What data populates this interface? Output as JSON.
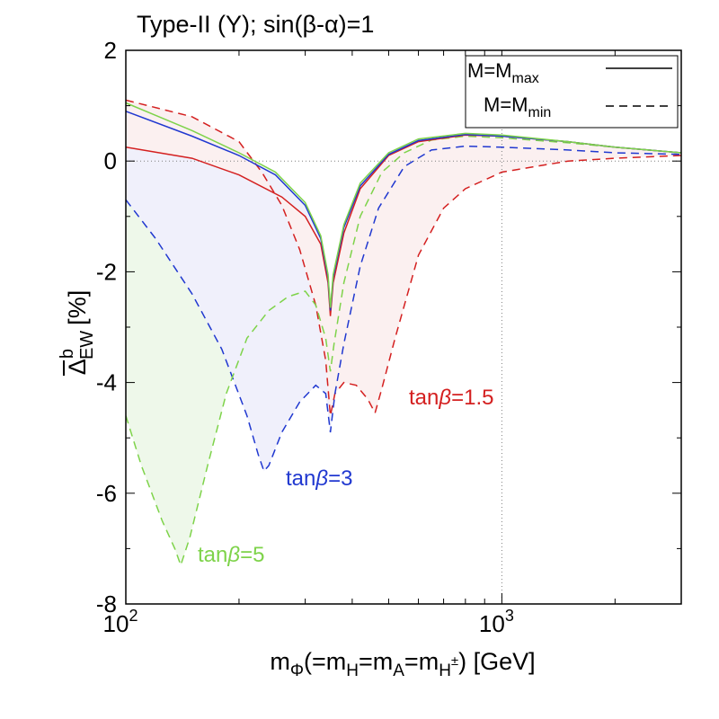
{
  "chart_data": {
    "type": "line",
    "title": "Type-II (Y); sin(β-α)=1",
    "xlabel": {
      "base": "m",
      "sub": "Φ",
      "mid1": "(=m",
      "subH": "H",
      "mid2": "=m",
      "subA": "A",
      "mid3": "=m",
      "subHpm": "H",
      "supHpm": "±",
      "tail": ") [GeV]"
    },
    "ylabel": {
      "symbol": "Δ",
      "sup": "b",
      "sub": "EW",
      "unit": "[%]"
    },
    "x_scale": "log",
    "xlim": [
      100,
      3000
    ],
    "ylim": [
      -8,
      2
    ],
    "x_ticks": [
      {
        "value": 100,
        "base": "10",
        "exp": "2"
      },
      {
        "value": 1000,
        "base": "10",
        "exp": "3"
      }
    ],
    "y_ticks": [
      {
        "value": 2,
        "label": "2"
      },
      {
        "value": 0,
        "label": "0"
      },
      {
        "value": -2,
        "label": "-2"
      },
      {
        "value": -4,
        "label": "-4"
      },
      {
        "value": -6,
        "label": "-6"
      },
      {
        "value": -8,
        "label": "-8"
      }
    ],
    "grid": "dotted at y=0 and x=1000",
    "legend": {
      "position": "top-right",
      "entries": [
        {
          "prefix": "M=M",
          "sub": "max",
          "style": "solid"
        },
        {
          "prefix": "M=M",
          "sub": "min",
          "style": "dashed"
        }
      ]
    },
    "series": [
      {
        "name": "tanβ=1.5 M=Mmax",
        "color": "#d42020",
        "style": "solid",
        "points": [
          [
            100,
            0.25
          ],
          [
            150,
            0.05
          ],
          [
            200,
            -0.25
          ],
          [
            260,
            -0.65
          ],
          [
            300,
            -1.0
          ],
          [
            330,
            -1.5
          ],
          [
            345,
            -2.2
          ],
          [
            350,
            -2.8
          ],
          [
            356,
            -2.2
          ],
          [
            380,
            -1.3
          ],
          [
            420,
            -0.5
          ],
          [
            500,
            0.1
          ],
          [
            600,
            0.35
          ],
          [
            800,
            0.47
          ],
          [
            1000,
            0.45
          ],
          [
            1500,
            0.35
          ],
          [
            2000,
            0.25
          ],
          [
            3000,
            0.15
          ]
        ]
      },
      {
        "name": "tanβ=3 M=Mmax",
        "color": "#2038d0",
        "style": "solid",
        "points": [
          [
            100,
            0.9
          ],
          [
            150,
            0.45
          ],
          [
            200,
            0.1
          ],
          [
            250,
            -0.25
          ],
          [
            300,
            -0.8
          ],
          [
            330,
            -1.4
          ],
          [
            345,
            -2.1
          ],
          [
            350,
            -2.7
          ],
          [
            356,
            -2.1
          ],
          [
            380,
            -1.2
          ],
          [
            420,
            -0.45
          ],
          [
            500,
            0.12
          ],
          [
            600,
            0.37
          ],
          [
            800,
            0.48
          ],
          [
            1000,
            0.45
          ],
          [
            1500,
            0.35
          ],
          [
            2000,
            0.25
          ],
          [
            3000,
            0.15
          ]
        ]
      },
      {
        "name": "tanβ=5 M=Mmax",
        "color": "#7ed34a",
        "style": "solid",
        "points": [
          [
            100,
            1.05
          ],
          [
            150,
            0.55
          ],
          [
            200,
            0.15
          ],
          [
            250,
            -0.2
          ],
          [
            300,
            -0.75
          ],
          [
            330,
            -1.35
          ],
          [
            345,
            -2.05
          ],
          [
            350,
            -2.65
          ],
          [
            356,
            -2.05
          ],
          [
            380,
            -1.15
          ],
          [
            420,
            -0.4
          ],
          [
            500,
            0.15
          ],
          [
            600,
            0.4
          ],
          [
            800,
            0.5
          ],
          [
            1000,
            0.47
          ],
          [
            1500,
            0.35
          ],
          [
            2000,
            0.25
          ],
          [
            3000,
            0.15
          ]
        ]
      },
      {
        "name": "tanβ=1.5 M=Mmin",
        "color": "#d42020",
        "style": "dashed",
        "points": [
          [
            100,
            1.1
          ],
          [
            150,
            0.8
          ],
          [
            200,
            0.35
          ],
          [
            230,
            -0.2
          ],
          [
            260,
            -0.8
          ],
          [
            290,
            -1.6
          ],
          [
            320,
            -2.6
          ],
          [
            340,
            -3.6
          ],
          [
            350,
            -4.6
          ],
          [
            360,
            -4.2
          ],
          [
            380,
            -4.0
          ],
          [
            410,
            -4.05
          ],
          [
            440,
            -4.3
          ],
          [
            460,
            -4.55
          ],
          [
            480,
            -4.1
          ],
          [
            520,
            -3.2
          ],
          [
            600,
            -1.7
          ],
          [
            700,
            -0.85
          ],
          [
            800,
            -0.5
          ],
          [
            1000,
            -0.2
          ],
          [
            1500,
            0.0
          ],
          [
            2000,
            0.05
          ],
          [
            3000,
            0.1
          ]
        ]
      },
      {
        "name": "tanβ=3 M=Mmin",
        "color": "#2038d0",
        "style": "dashed",
        "points": [
          [
            100,
            -0.7
          ],
          [
            120,
            -1.4
          ],
          [
            150,
            -2.4
          ],
          [
            180,
            -3.4
          ],
          [
            210,
            -4.6
          ],
          [
            225,
            -5.3
          ],
          [
            233,
            -5.6
          ],
          [
            240,
            -5.5
          ],
          [
            260,
            -4.9
          ],
          [
            290,
            -4.35
          ],
          [
            320,
            -4.05
          ],
          [
            340,
            -4.2
          ],
          [
            350,
            -4.9
          ],
          [
            360,
            -4.2
          ],
          [
            380,
            -3.3
          ],
          [
            420,
            -1.9
          ],
          [
            470,
            -0.85
          ],
          [
            550,
            -0.1
          ],
          [
            650,
            0.2
          ],
          [
            800,
            0.27
          ],
          [
            1000,
            0.25
          ],
          [
            1500,
            0.2
          ],
          [
            2000,
            0.15
          ],
          [
            3000,
            0.12
          ]
        ]
      },
      {
        "name": "tanβ=5 M=Mmin",
        "color": "#7ed34a",
        "style": "dashed",
        "points": [
          [
            100,
            -4.6
          ],
          [
            110,
            -5.5
          ],
          [
            125,
            -6.5
          ],
          [
            135,
            -7.0
          ],
          [
            140,
            -7.3
          ],
          [
            148,
            -6.8
          ],
          [
            165,
            -5.5
          ],
          [
            185,
            -4.2
          ],
          [
            210,
            -3.2
          ],
          [
            240,
            -2.7
          ],
          [
            270,
            -2.45
          ],
          [
            300,
            -2.35
          ],
          [
            320,
            -2.6
          ],
          [
            340,
            -3.2
          ],
          [
            350,
            -3.8
          ],
          [
            358,
            -3.3
          ],
          [
            380,
            -2.2
          ],
          [
            420,
            -1.0
          ],
          [
            480,
            -0.2
          ],
          [
            550,
            0.15
          ],
          [
            650,
            0.38
          ],
          [
            800,
            0.45
          ],
          [
            1000,
            0.42
          ],
          [
            1500,
            0.33
          ],
          [
            2000,
            0.25
          ],
          [
            3000,
            0.15
          ]
        ]
      }
    ],
    "annotations": [
      {
        "prefix": "tan",
        "beta": "β",
        "suffix": "=1.5",
        "color": "#d42020"
      },
      {
        "prefix": "tan",
        "beta": "β",
        "suffix": "=3",
        "color": "#2038d0"
      },
      {
        "prefix": "tan",
        "beta": "β",
        "suffix": "=5",
        "color": "#7ed34a"
      }
    ]
  }
}
